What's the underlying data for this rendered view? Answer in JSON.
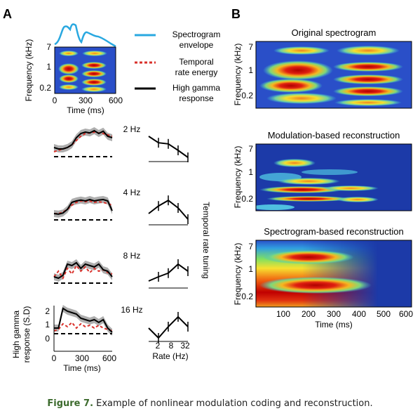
{
  "panels": {
    "a": {
      "letter": "A"
    },
    "b": {
      "letter": "B"
    }
  },
  "legend": {
    "spectrogram": {
      "line1": "Spectrogram",
      "line2": "envelope",
      "color": "#29a8e0"
    },
    "temporal": {
      "line1": "Temporal",
      "line2": "rate energy",
      "color": "#d9302a"
    },
    "gamma": {
      "line1": "High gamma",
      "line2": "response",
      "color": "#000000"
    }
  },
  "small_spectrogram": {
    "ylabel": "Frequency (kHz)",
    "xlabel": "Time (ms)",
    "yticks": [
      "7",
      "1",
      "0.2"
    ],
    "xticks": [
      "0",
      "300",
      "600"
    ]
  },
  "rate_rows": [
    {
      "label": "2 Hz",
      "tuning": [
        0.85,
        0.62,
        0.58,
        0.35,
        0.1
      ]
    },
    {
      "label": "4 Hz",
      "tuning": [
        0.35,
        0.62,
        0.82,
        0.55,
        0.15
      ]
    },
    {
      "label": "8 Hz",
      "tuning": [
        0.2,
        0.35,
        0.48,
        0.8,
        0.55
      ]
    },
    {
      "label": "16 Hz",
      "tuning": [
        0.45,
        0.1,
        0.5,
        0.85,
        0.5
      ]
    }
  ],
  "response_axes": {
    "ylabel_line1": "High gamma",
    "ylabel_line2": "response (S.D)",
    "yticks": [
      "2",
      "1",
      "0"
    ],
    "xticks": [
      "0",
      "300",
      "600"
    ],
    "xlabel": "Time (ms)"
  },
  "tuning_axes": {
    "side_label": "Temporal rate tuning",
    "xticks": [
      "2",
      "8",
      "32"
    ],
    "xlabel": "Rate (Hz)"
  },
  "recon": {
    "original_title": "Original spectrogram",
    "modulation_title": "Modulation-based reconstruction",
    "spectrogram_title": "Spectrogram-based reconstruction",
    "ylabel": "Frequency (kHz)",
    "yticks": [
      "7",
      "1",
      "0.2"
    ],
    "xticks": [
      "100",
      "200",
      "300",
      "400",
      "500",
      "600"
    ],
    "xlabel": "Time (ms)"
  },
  "caption": {
    "label": "Figure 7.",
    "text": " Example of nonlinear modulation coding and reconstruction."
  }
}
